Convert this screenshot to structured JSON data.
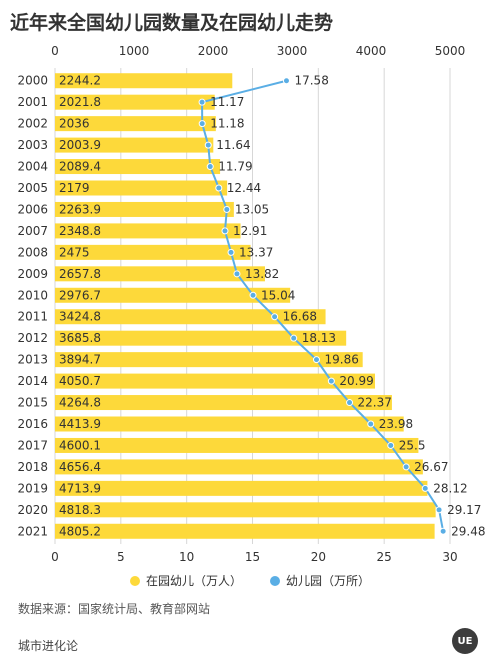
{
  "title": "近年来全国幼儿园数量及在园幼儿走势",
  "legend": {
    "bar_label": "在园幼儿（万人）",
    "line_label": "幼儿园（万所）"
  },
  "source": "数据来源：国家统计局、教育部网站",
  "brand": "城市进化论",
  "colors": {
    "bar": "#FDD93A",
    "line": "#5AAEE5",
    "grid": "#d7d7d7",
    "text": "#333333"
  },
  "chart_data": {
    "type": "bar",
    "orientation": "horizontal",
    "title": "近年来全国幼儿园数量及在园幼儿走势",
    "categories": [
      "2000",
      "2001",
      "2002",
      "2003",
      "2004",
      "2005",
      "2006",
      "2007",
      "2008",
      "2009",
      "2010",
      "2011",
      "2012",
      "2013",
      "2014",
      "2015",
      "2016",
      "2017",
      "2018",
      "2019",
      "2020",
      "2021"
    ],
    "series": [
      {
        "name": "在园幼儿（万人）",
        "type": "bar",
        "axis": "top",
        "values": [
          2244.2,
          2021.8,
          2036,
          2003.9,
          2089.4,
          2179,
          2263.9,
          2348.8,
          2475,
          2657.8,
          2976.7,
          3424.8,
          3685.8,
          3894.7,
          4050.7,
          4264.8,
          4413.9,
          4600.1,
          4656.4,
          4713.9,
          4818.3,
          4805.2
        ],
        "labels": [
          "2244.2",
          "2021.8",
          "2036",
          "2003.9",
          "2089.4",
          "2179",
          "2263.9",
          "2348.8",
          "2475",
          "2657.8",
          "2976.7",
          "3424.8",
          "3685.8",
          "3894.7",
          "4050.7",
          "4264.8",
          "4413.9",
          "4600.1",
          "4656.4",
          "4713.9",
          "4818.3",
          "4805.2"
        ]
      },
      {
        "name": "幼儿园（万所）",
        "type": "line",
        "axis": "bottom",
        "values": [
          17.58,
          11.17,
          11.18,
          11.64,
          11.79,
          12.44,
          13.05,
          12.91,
          13.37,
          13.82,
          15.04,
          16.68,
          18.13,
          19.86,
          20.99,
          22.37,
          23.98,
          25.5,
          26.67,
          28.12,
          29.17,
          29.48
        ],
        "labels": [
          "17.58",
          "11.17",
          "11.18",
          "11.64",
          "11.79",
          "12.44",
          "13.05",
          "12.91",
          "13.37",
          "13.82",
          "15.04",
          "16.68",
          "18.13",
          "19.86",
          "20.99",
          "22.37",
          "23.98",
          "25.5",
          "26.67",
          "28.12",
          "29.17",
          "29.48"
        ]
      }
    ],
    "top_axis": {
      "range": [
        0,
        5000
      ],
      "ticks": [
        "0",
        "1000",
        "2000",
        "3000",
        "4000",
        "5000"
      ]
    },
    "bottom_axis": {
      "range": [
        0,
        30
      ],
      "ticks": [
        "0",
        "5",
        "10",
        "15",
        "20",
        "25",
        "30"
      ]
    },
    "grid": true,
    "legend_position": "bottom"
  }
}
